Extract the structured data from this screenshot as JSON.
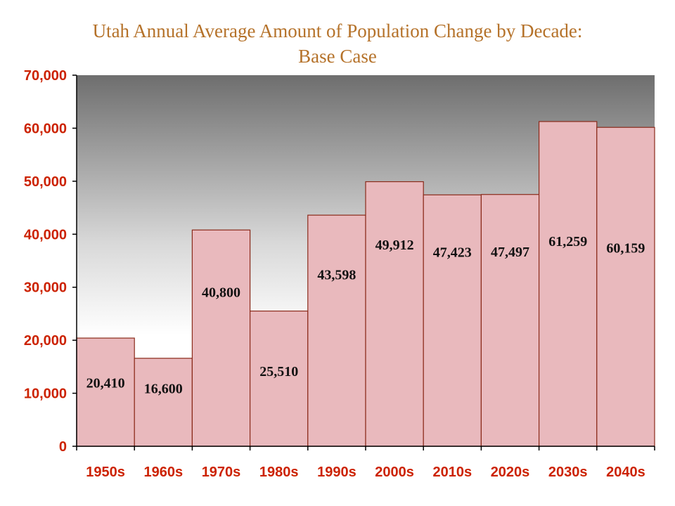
{
  "title_line1": "Utah Annual Average Amount of Population Change by Decade:",
  "title_line2": "Base Case",
  "colors": {
    "title": "#b5722a",
    "axis_text": "#cc2200",
    "bar_fill": "#e9b9bd",
    "bar_stroke": "#8a2a1a",
    "plot_top": "#6e6e6e",
    "plot_bottom": "#ffffff"
  },
  "chart_data": {
    "type": "bar",
    "title": "Utah Annual Average Amount of Population Change by Decade: Base Case",
    "xlabel": "",
    "ylabel": "",
    "categories": [
      "1950s",
      "1960s",
      "1970s",
      "1980s",
      "1990s",
      "2000s",
      "2010s",
      "2020s",
      "2030s",
      "2040s"
    ],
    "values": [
      20410,
      16600,
      40800,
      25510,
      43598,
      49912,
      47423,
      47497,
      61259,
      60159
    ],
    "data_labels": [
      "20,410",
      "16,600",
      "40,800",
      "25,510",
      "43,598",
      "49,912",
      "47,423",
      "47,497",
      "61,259",
      "60,159"
    ],
    "ylim": [
      0,
      70000
    ],
    "yticks": [
      0,
      10000,
      20000,
      30000,
      40000,
      50000,
      60000,
      70000
    ],
    "ytick_labels": [
      "0",
      "10,000",
      "20,000",
      "30,000",
      "40,000",
      "50,000",
      "60,000",
      "70,000"
    ],
    "grid": false,
    "legend": "none"
  }
}
